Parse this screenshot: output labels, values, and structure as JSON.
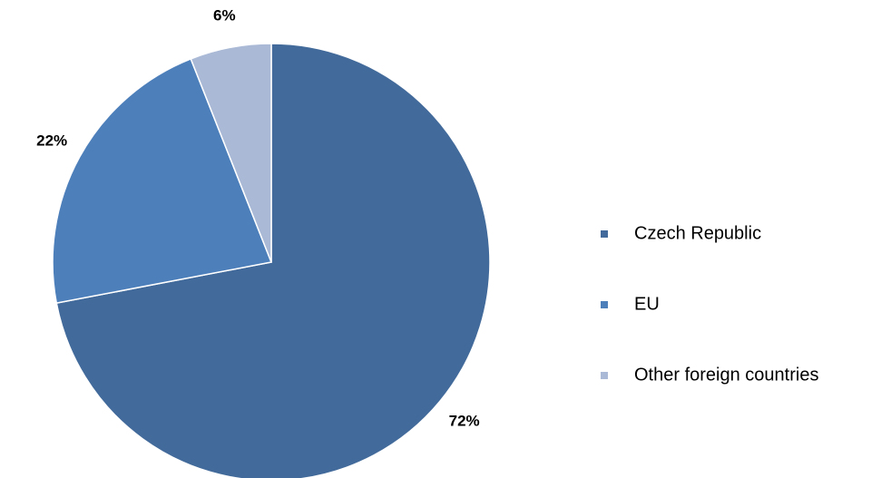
{
  "chart_data": {
    "type": "pie",
    "categories": [
      "Czech Republic",
      "EU",
      "Other foreign countries"
    ],
    "values": [
      72,
      22,
      6
    ],
    "value_labels": [
      "72%",
      "22%",
      "6%"
    ],
    "colors": [
      "#426a9a",
      "#4d7fbb",
      "#a9b9d6"
    ],
    "legend": "right"
  }
}
